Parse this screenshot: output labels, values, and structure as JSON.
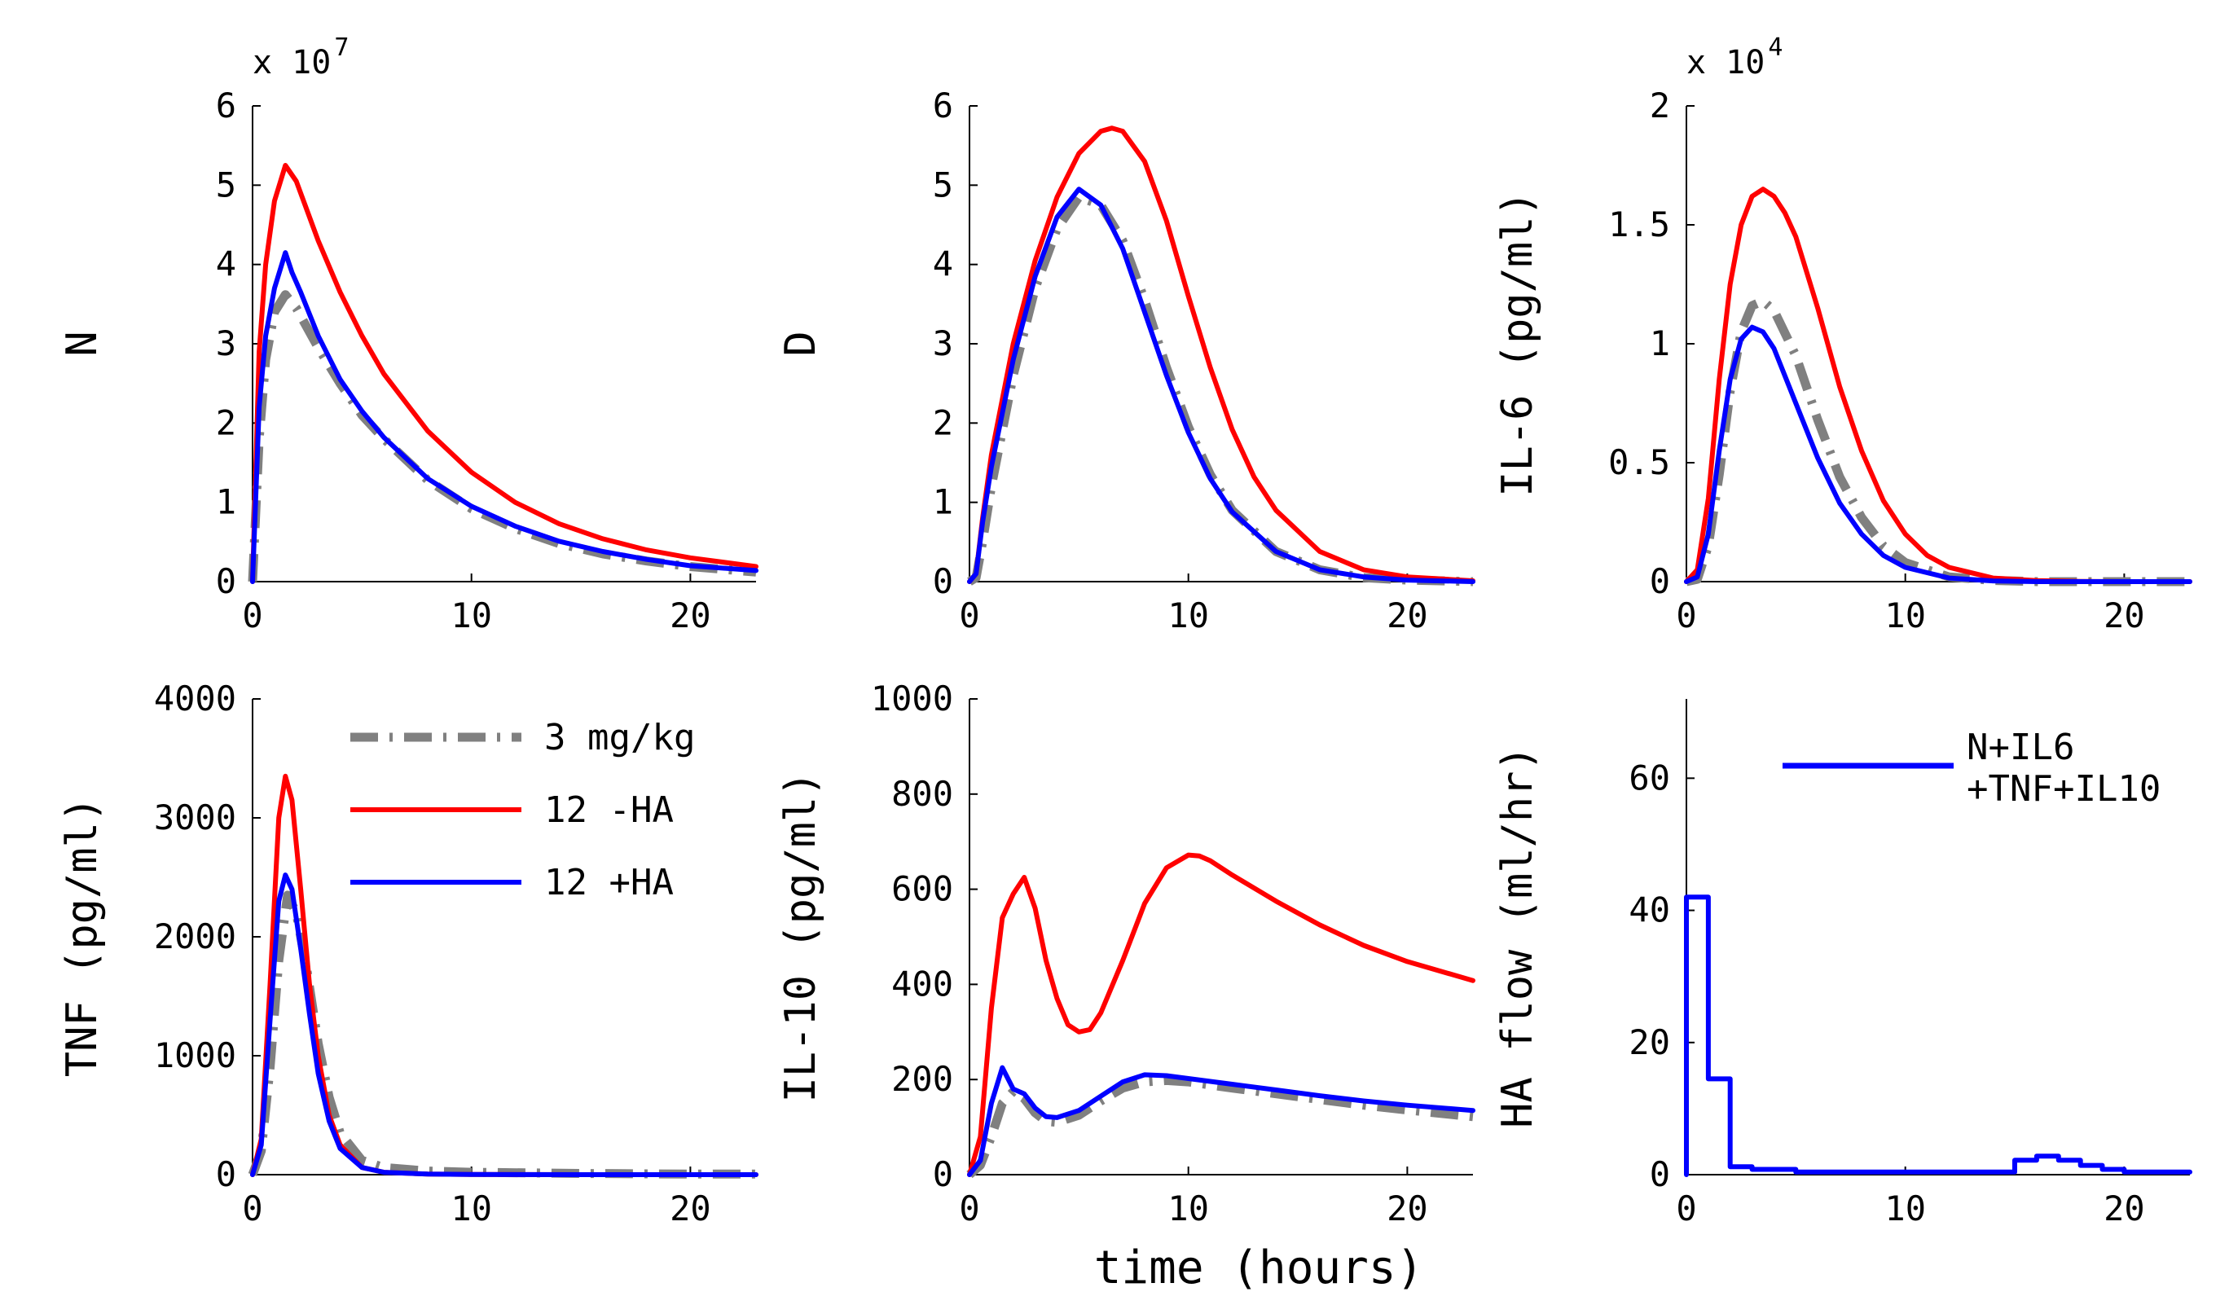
{
  "figure": {
    "xlabel": "time (hours)",
    "series_legend": [
      {
        "name": "3 mg/kg",
        "color": "#808080",
        "style": "dashdot"
      },
      {
        "name": "12 -HA",
        "color": "#ff0000",
        "style": "solid"
      },
      {
        "name": "12 +HA",
        "color": "#0000ff",
        "style": "solid"
      }
    ]
  },
  "chart_data": [
    {
      "id": "N",
      "type": "line",
      "ylabel": "N",
      "multiplier": {
        "base": "x 10",
        "exp": "7"
      },
      "xlim": [
        0,
        23
      ],
      "ylim": [
        0,
        6
      ],
      "xticks": [
        0,
        10,
        20
      ],
      "xtick_labels": [
        "0",
        "10",
        "20"
      ],
      "yticks": [
        0,
        1,
        2,
        3,
        4,
        5,
        6
      ],
      "ytick_labels": [
        "0",
        "1",
        "2",
        "3",
        "4",
        "5",
        "6"
      ],
      "series": [
        {
          "name": "3 mg/kg",
          "color": "#808080",
          "style": "dashdot",
          "x": [
            0,
            0.3,
            0.6,
            1.0,
            1.5,
            2,
            3,
            4,
            5,
            6,
            8,
            10,
            12,
            14,
            16,
            18,
            20,
            23
          ],
          "y": [
            0,
            1.8,
            2.8,
            3.4,
            3.62,
            3.45,
            2.95,
            2.5,
            2.1,
            1.8,
            1.28,
            0.92,
            0.67,
            0.48,
            0.35,
            0.26,
            0.19,
            0.12
          ]
        },
        {
          "name": "12 -HA",
          "color": "#ff0000",
          "style": "solid",
          "x": [
            0,
            0.3,
            0.6,
            1.0,
            1.5,
            2,
            3,
            4,
            5,
            6,
            8,
            10,
            12,
            14,
            16,
            18,
            20,
            23
          ],
          "y": [
            0,
            2.9,
            4.0,
            4.8,
            5.25,
            5.05,
            4.3,
            3.65,
            3.1,
            2.62,
            1.9,
            1.38,
            1.0,
            0.73,
            0.54,
            0.4,
            0.3,
            0.19
          ]
        },
        {
          "name": "12 +HA",
          "color": "#0000ff",
          "style": "solid",
          "x": [
            0,
            0.3,
            0.6,
            1.0,
            1.5,
            1.8,
            2.2,
            3,
            4,
            5,
            6,
            8,
            10,
            12,
            14,
            16,
            18,
            20,
            23
          ],
          "y": [
            0,
            2.2,
            3.1,
            3.7,
            4.15,
            3.9,
            3.65,
            3.1,
            2.55,
            2.15,
            1.82,
            1.3,
            0.95,
            0.7,
            0.51,
            0.38,
            0.28,
            0.2,
            0.14
          ]
        }
      ]
    },
    {
      "id": "D",
      "type": "line",
      "ylabel": "D",
      "multiplier": null,
      "xlim": [
        0,
        23
      ],
      "ylim": [
        0,
        6
      ],
      "xticks": [
        0,
        10,
        20
      ],
      "xtick_labels": [
        "0",
        "10",
        "20"
      ],
      "yticks": [
        0,
        1,
        2,
        3,
        4,
        5,
        6
      ],
      "ytick_labels": [
        "0",
        "1",
        "2",
        "3",
        "4",
        "5",
        "6"
      ],
      "series": [
        {
          "name": "3 mg/kg",
          "color": "#808080",
          "style": "dashdot",
          "x": [
            0,
            0.3,
            0.6,
            1,
            2,
            3,
            4,
            5,
            6,
            7,
            8,
            9,
            10,
            11,
            12,
            14,
            16,
            18,
            20,
            23
          ],
          "y": [
            0,
            0.05,
            0.5,
            1.2,
            2.6,
            3.7,
            4.45,
            4.85,
            4.75,
            4.3,
            3.55,
            2.7,
            1.95,
            1.35,
            0.9,
            0.38,
            0.15,
            0.05,
            0.02,
            0
          ]
        },
        {
          "name": "12 -HA",
          "color": "#ff0000",
          "style": "solid",
          "x": [
            0,
            0.3,
            0.6,
            1,
            2,
            3,
            4,
            5,
            6,
            6.5,
            7,
            8,
            9,
            10,
            11,
            12,
            13,
            14,
            16,
            18,
            20,
            23
          ],
          "y": [
            0,
            0.1,
            0.8,
            1.6,
            3.0,
            4.05,
            4.85,
            5.4,
            5.68,
            5.72,
            5.68,
            5.3,
            4.55,
            3.6,
            2.7,
            1.92,
            1.32,
            0.9,
            0.38,
            0.15,
            0.06,
            0.01
          ]
        },
        {
          "name": "12 +HA",
          "color": "#0000ff",
          "style": "solid",
          "x": [
            0,
            0.3,
            0.6,
            1,
            2,
            3,
            4,
            5,
            6,
            7,
            8,
            9,
            10,
            11,
            12,
            14,
            16,
            18,
            20,
            23
          ],
          "y": [
            0,
            0.1,
            0.75,
            1.45,
            2.8,
            3.85,
            4.6,
            4.95,
            4.75,
            4.2,
            3.4,
            2.6,
            1.88,
            1.3,
            0.88,
            0.38,
            0.15,
            0.06,
            0.02,
            0
          ]
        }
      ]
    },
    {
      "id": "IL6",
      "type": "line",
      "ylabel": "IL-6 (pg/ml)",
      "multiplier": {
        "base": "x 10",
        "exp": "4"
      },
      "xlim": [
        0,
        23
      ],
      "ylim": [
        0,
        2
      ],
      "xticks": [
        0,
        10,
        20
      ],
      "xtick_labels": [
        "0",
        "10",
        "20"
      ],
      "yticks": [
        0,
        0.5,
        1,
        1.5,
        2
      ],
      "ytick_labels": [
        "0",
        "0.5",
        "1",
        "1.5",
        "2"
      ],
      "series": [
        {
          "name": "3 mg/kg",
          "color": "#808080",
          "style": "dashdot",
          "x": [
            0,
            0.5,
            1,
            1.5,
            2,
            2.5,
            3,
            3.5,
            4,
            5,
            6,
            7,
            8,
            9,
            10,
            12,
            14,
            16,
            18,
            20,
            23
          ],
          "y": [
            0,
            0.01,
            0.15,
            0.45,
            0.8,
            1.05,
            1.16,
            1.18,
            1.14,
            0.95,
            0.68,
            0.44,
            0.27,
            0.15,
            0.08,
            0.02,
            0.005,
            0,
            0,
            0,
            0
          ]
        },
        {
          "name": "12 -HA",
          "color": "#ff0000",
          "style": "solid",
          "x": [
            0,
            0.5,
            1,
            1.5,
            2,
            2.5,
            3,
            3.5,
            4,
            4.5,
            5,
            6,
            7,
            8,
            9,
            10,
            11,
            12,
            14,
            16,
            18,
            20,
            23
          ],
          "y": [
            0,
            0.05,
            0.35,
            0.85,
            1.25,
            1.5,
            1.62,
            1.65,
            1.62,
            1.55,
            1.45,
            1.15,
            0.82,
            0.55,
            0.34,
            0.2,
            0.11,
            0.06,
            0.015,
            0.004,
            0.001,
            0,
            0
          ]
        },
        {
          "name": "12 +HA",
          "color": "#0000ff",
          "style": "solid",
          "x": [
            0,
            0.5,
            1,
            1.5,
            2,
            2.5,
            3,
            3.5,
            4,
            5,
            6,
            7,
            8,
            9,
            10,
            12,
            14,
            16,
            18,
            20,
            23
          ],
          "y": [
            0,
            0.02,
            0.2,
            0.55,
            0.85,
            1.02,
            1.07,
            1.05,
            0.98,
            0.75,
            0.52,
            0.33,
            0.2,
            0.11,
            0.06,
            0.015,
            0.003,
            0,
            0,
            0,
            0
          ]
        }
      ]
    },
    {
      "id": "TNF",
      "type": "line",
      "ylabel": "TNF (pg/ml)",
      "multiplier": null,
      "xlim": [
        0,
        23
      ],
      "ylim": [
        0,
        4000
      ],
      "xticks": [
        0,
        10,
        20
      ],
      "xtick_labels": [
        "0",
        "10",
        "20"
      ],
      "yticks": [
        0,
        1000,
        2000,
        3000,
        4000
      ],
      "ytick_labels": [
        "0",
        "1000",
        "2000",
        "3000",
        "4000"
      ],
      "legend": [
        "3 mg/kg",
        "12 -HA",
        "12 +HA"
      ],
      "series": [
        {
          "name": "3 mg/kg",
          "color": "#808080",
          "style": "dashdot",
          "x": [
            0,
            0.4,
            0.8,
            1.2,
            1.6,
            2.0,
            2.5,
            3,
            3.5,
            4,
            5,
            6,
            8,
            10,
            15,
            20,
            23
          ],
          "y": [
            0,
            200,
            900,
            1800,
            2350,
            2200,
            1700,
            1100,
            650,
            350,
            120,
            60,
            30,
            20,
            10,
            5,
            5
          ]
        },
        {
          "name": "12 -HA",
          "color": "#ff0000",
          "style": "solid",
          "x": [
            0,
            0.4,
            0.8,
            1.2,
            1.5,
            1.8,
            2.2,
            2.6,
            3,
            3.5,
            4,
            5,
            6,
            8,
            10,
            15,
            20,
            23
          ],
          "y": [
            0,
            300,
            1600,
            3000,
            3350,
            3150,
            2400,
            1600,
            1000,
            500,
            250,
            60,
            20,
            5,
            2,
            0,
            0,
            0
          ]
        },
        {
          "name": "12 +HA",
          "color": "#0000ff",
          "style": "solid",
          "x": [
            0,
            0.4,
            0.8,
            1.2,
            1.5,
            1.8,
            2.2,
            2.6,
            3,
            3.5,
            4,
            5,
            6,
            8,
            10,
            15,
            20,
            23
          ],
          "y": [
            0,
            250,
            1300,
            2300,
            2520,
            2400,
            1900,
            1350,
            850,
            450,
            220,
            60,
            20,
            5,
            2,
            0,
            0,
            0
          ]
        }
      ]
    },
    {
      "id": "IL10",
      "type": "line",
      "ylabel": "IL-10 (pg/ml)",
      "multiplier": null,
      "xlim": [
        0,
        23
      ],
      "ylim": [
        0,
        1000
      ],
      "xticks": [
        0,
        10,
        20
      ],
      "xtick_labels": [
        "0",
        "10",
        "20"
      ],
      "yticks": [
        0,
        200,
        400,
        600,
        800,
        1000
      ],
      "ytick_labels": [
        "0",
        "200",
        "400",
        "600",
        "800",
        "1000"
      ],
      "series": [
        {
          "name": "3 mg/kg",
          "color": "#808080",
          "style": "dashdot",
          "x": [
            0,
            0.5,
            1,
            1.5,
            2,
            2.5,
            3,
            3.5,
            4,
            5,
            6,
            7,
            8,
            9,
            10,
            12,
            14,
            16,
            18,
            20,
            23
          ],
          "y": [
            0,
            20,
            80,
            150,
            175,
            160,
            130,
            112,
            110,
            125,
            155,
            182,
            195,
            198,
            195,
            182,
            170,
            158,
            146,
            136,
            122
          ]
        },
        {
          "name": "12 -HA",
          "color": "#ff0000",
          "style": "solid",
          "x": [
            0,
            0.5,
            1,
            1.5,
            2,
            2.5,
            3,
            3.5,
            4,
            4.5,
            5,
            5.5,
            6,
            7,
            8,
            9,
            10,
            10.5,
            11,
            12,
            14,
            16,
            18,
            20,
            23
          ],
          "y": [
            0,
            80,
            350,
            540,
            590,
            625,
            560,
            450,
            370,
            315,
            300,
            305,
            340,
            450,
            570,
            645,
            672,
            670,
            660,
            630,
            575,
            525,
            482,
            448,
            408
          ]
        },
        {
          "name": "12 +HA",
          "color": "#0000ff",
          "style": "solid",
          "x": [
            0,
            0.5,
            1,
            1.5,
            2,
            2.5,
            3,
            3.5,
            4,
            5,
            6,
            7,
            8,
            9,
            10,
            12,
            14,
            16,
            18,
            20,
            23
          ],
          "y": [
            0,
            30,
            150,
            225,
            180,
            170,
            140,
            122,
            120,
            135,
            165,
            195,
            210,
            208,
            202,
            190,
            178,
            166,
            155,
            146,
            135
          ]
        }
      ]
    },
    {
      "id": "HAflow",
      "type": "line",
      "ylabel": "HA flow (ml/hr)",
      "multiplier": null,
      "xlim": [
        0,
        23
      ],
      "ylim": [
        0,
        72
      ],
      "xticks": [
        0,
        10,
        20
      ],
      "xtick_labels": [
        "0",
        "10",
        "20"
      ],
      "yticks": [
        0,
        20,
        40,
        60
      ],
      "ytick_labels": [
        "0",
        "20",
        "40",
        "60"
      ],
      "legend": [
        "N+IL6",
        "+TNF+IL10"
      ],
      "series": [
        {
          "name": "N+IL6 +TNF+IL10",
          "color": "#0000ff",
          "style": "solid",
          "x": [
            0,
            0,
            1,
            1,
            2,
            2,
            3,
            3,
            5,
            5,
            15,
            15,
            16,
            16,
            17,
            17,
            18,
            18,
            19,
            19,
            20,
            20,
            23
          ],
          "y": [
            0,
            42,
            42,
            14.5,
            14.5,
            1.2,
            1.2,
            0.8,
            0.8,
            0.4,
            0.4,
            2.2,
            2.2,
            2.8,
            2.8,
            2.2,
            2.2,
            1.4,
            1.4,
            0.8,
            0.8,
            0.4,
            0.4
          ]
        }
      ]
    }
  ]
}
